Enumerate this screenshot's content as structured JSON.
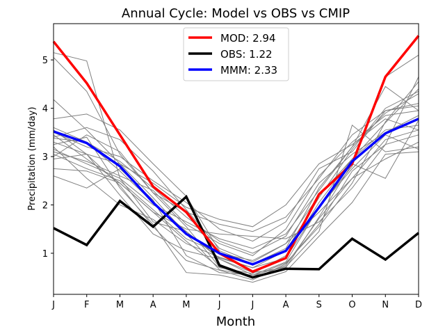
{
  "chart_data": {
    "type": "line",
    "title": "Annual Cycle: Model vs OBS vs CMIP",
    "xlabel": "Month",
    "ylabel": "Precipitation (mm/day)",
    "categories": [
      "J",
      "F",
      "M",
      "A",
      "M",
      "J",
      "J",
      "A",
      "S",
      "O",
      "N",
      "D"
    ],
    "ylim": [
      0.15,
      5.75
    ],
    "yticks": [
      1,
      2,
      3,
      4,
      5
    ],
    "legend_position": "upper-center",
    "series": [
      {
        "name": "MOD: 2.94",
        "color": "#ff0000",
        "values": [
          5.38,
          4.52,
          3.45,
          2.38,
          1.85,
          1.0,
          0.62,
          0.9,
          2.22,
          2.85,
          4.65,
          5.5
        ]
      },
      {
        "name": "OBS: 1.22",
        "color": "#000000",
        "values": [
          1.52,
          1.17,
          2.08,
          1.55,
          2.17,
          0.75,
          0.5,
          0.68,
          0.67,
          1.3,
          0.87,
          1.42
        ]
      },
      {
        "name": "MMM: 2.33",
        "color": "#0000ff",
        "values": [
          3.52,
          3.28,
          2.8,
          2.05,
          1.4,
          1.0,
          0.77,
          1.05,
          1.95,
          2.9,
          3.48,
          3.78
        ]
      }
    ],
    "ensemble": {
      "color": "#808080",
      "members": [
        [
          5.15,
          4.98,
          2.55,
          1.65,
          1.45,
          0.88,
          0.55,
          0.82,
          1.95,
          2.75,
          3.45,
          3.15
        ],
        [
          5.05,
          4.35,
          3.05,
          2.25,
          1.55,
          0.72,
          0.48,
          0.75,
          1.72,
          2.55,
          3.35,
          3.55
        ],
        [
          4.18,
          3.55,
          2.85,
          2.15,
          1.4,
          0.66,
          0.52,
          0.8,
          1.55,
          2.45,
          3.72,
          4.55
        ],
        [
          3.78,
          3.88,
          3.55,
          2.85,
          2.18,
          1.05,
          0.78,
          1.1,
          2.35,
          3.2,
          3.9,
          4.3
        ],
        [
          3.6,
          3.3,
          2.9,
          2.35,
          1.75,
          1.25,
          1.0,
          1.35,
          2.45,
          3.05,
          3.5,
          3.85
        ],
        [
          3.5,
          3.2,
          3.0,
          2.5,
          2.05,
          1.5,
          1.25,
          1.65,
          2.75,
          3.1,
          3.95,
          4.1
        ],
        [
          3.45,
          2.95,
          2.45,
          1.85,
          1.25,
          0.7,
          0.58,
          0.95,
          2.05,
          2.95,
          3.55,
          3.65
        ],
        [
          3.38,
          3.3,
          2.7,
          2.05,
          1.45,
          0.9,
          0.7,
          1.05,
          2.15,
          3.15,
          4.0,
          4.35
        ],
        [
          3.3,
          3.05,
          2.85,
          2.45,
          1.95,
          1.7,
          1.55,
          2.0,
          2.85,
          3.25,
          3.78,
          3.55
        ],
        [
          3.25,
          3.4,
          2.35,
          1.6,
          0.6,
          0.55,
          0.4,
          0.62,
          1.35,
          2.05,
          3.05,
          3.1
        ],
        [
          3.15,
          2.85,
          2.55,
          2.0,
          1.65,
          1.3,
          1.1,
          1.4,
          2.3,
          3.2,
          4.45,
          3.95
        ],
        [
          3.05,
          2.75,
          2.5,
          1.9,
          1.3,
          1.0,
          0.85,
          1.2,
          1.85,
          2.55,
          2.95,
          3.3
        ],
        [
          3.0,
          3.45,
          3.1,
          2.25,
          1.85,
          1.6,
          1.45,
          1.75,
          2.55,
          3.45,
          3.95,
          4.05
        ],
        [
          2.75,
          2.7,
          2.45,
          1.85,
          1.5,
          1.4,
          1.35,
          1.3,
          1.65,
          2.35,
          3.25,
          3.45
        ],
        [
          2.6,
          2.35,
          2.75,
          2.1,
          0.95,
          0.6,
          0.55,
          0.72,
          1.45,
          3.65,
          3.1,
          3.2
        ],
        [
          2.95,
          3.05,
          2.2,
          1.4,
          1.05,
          0.88,
          0.6,
          0.7,
          1.75,
          2.85,
          2.55,
          3.75
        ],
        [
          3.55,
          3.05,
          2.4,
          1.55,
          0.85,
          0.65,
          0.45,
          0.78,
          1.6,
          2.7,
          3.25,
          4.65
        ],
        [
          3.4,
          3.6,
          3.35,
          2.7,
          1.9,
          1.1,
          0.82,
          1.2,
          2.2,
          2.95,
          3.7,
          4.4
        ],
        [
          3.2,
          2.55,
          2.0,
          1.7,
          1.2,
          0.92,
          0.7,
          0.9,
          1.95,
          2.8,
          4.65,
          5.1
        ],
        [
          3.1,
          2.9,
          2.6,
          2.3,
          1.6,
          1.2,
          0.95,
          1.5,
          2.6,
          3.3,
          3.85,
          3.95
        ]
      ]
    }
  }
}
